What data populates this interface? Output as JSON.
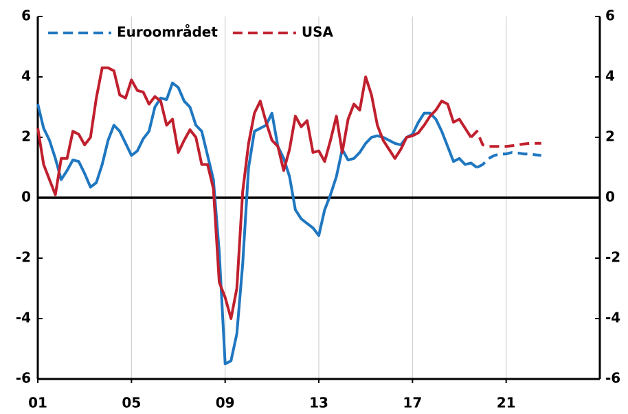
{
  "chart_data": {
    "type": "line",
    "x": [
      2001,
      2001.25,
      2001.5,
      2001.75,
      2002,
      2002.25,
      2002.5,
      2002.75,
      2003,
      2003.25,
      2003.5,
      2003.75,
      2004,
      2004.25,
      2004.5,
      2004.75,
      2005,
      2005.25,
      2005.5,
      2005.75,
      2006,
      2006.25,
      2006.5,
      2006.75,
      2007,
      2007.25,
      2007.5,
      2007.75,
      2008,
      2008.25,
      2008.5,
      2008.75,
      2009,
      2009.25,
      2009.5,
      2009.75,
      2010,
      2010.25,
      2010.5,
      2010.75,
      2011,
      2011.25,
      2011.5,
      2011.75,
      2012,
      2012.25,
      2012.5,
      2012.75,
      2013,
      2013.25,
      2013.5,
      2013.75,
      2014,
      2014.25,
      2014.5,
      2014.75,
      2015,
      2015.25,
      2015.5,
      2015.75,
      2016,
      2016.25,
      2016.5,
      2016.75,
      2017,
      2017.25,
      2017.5,
      2017.75,
      2018,
      2018.25,
      2018.5,
      2018.75,
      2019,
      2019.25,
      2019.5,
      2019.75,
      2020,
      2020.25,
      2020.5,
      2020.75,
      2021,
      2021.25,
      2021.5,
      2021.75,
      2022,
      2022.25,
      2022.5
    ],
    "series": [
      {
        "name": "Euroområdet",
        "color": "#1f77c0",
        "dashed_from": 2019.75,
        "values": [
          3.1,
          2.3,
          1.9,
          1.3,
          0.6,
          0.9,
          1.25,
          1.2,
          0.8,
          0.35,
          0.5,
          1.1,
          1.9,
          2.4,
          2.2,
          1.8,
          1.4,
          1.55,
          1.95,
          2.2,
          3.0,
          3.3,
          3.25,
          3.8,
          3.65,
          3.2,
          3.0,
          2.4,
          2.2,
          1.4,
          0.6,
          -1.8,
          -5.5,
          -5.4,
          -4.5,
          -2.2,
          1.0,
          2.2,
          2.3,
          2.4,
          2.8,
          1.7,
          1.3,
          0.7,
          -0.4,
          -0.7,
          -0.85,
          -1.0,
          -1.25,
          -0.4,
          0.1,
          0.7,
          1.6,
          1.25,
          1.3,
          1.5,
          1.8,
          2.0,
          2.05,
          2.0,
          1.9,
          1.8,
          1.75,
          2.0,
          2.1,
          2.5,
          2.8,
          2.8,
          2.6,
          2.2,
          1.7,
          1.2,
          1.3,
          1.1,
          1.15,
          1.0,
          1.1,
          1.3,
          1.4,
          1.45,
          1.45,
          1.5,
          1.48,
          1.45,
          1.45,
          1.42,
          1.4
        ]
      },
      {
        "name": "USA",
        "color": "#c0202e",
        "dashed_from": 2019.5,
        "values": [
          2.3,
          1.1,
          0.6,
          0.1,
          1.3,
          1.3,
          2.2,
          2.1,
          1.75,
          2.0,
          3.3,
          4.3,
          4.3,
          4.2,
          3.4,
          3.3,
          3.9,
          3.55,
          3.5,
          3.1,
          3.35,
          3.2,
          2.4,
          2.6,
          1.5,
          1.9,
          2.25,
          2.0,
          1.1,
          1.1,
          0.3,
          -2.8,
          -3.3,
          -4.0,
          -3.0,
          0.2,
          1.8,
          2.8,
          3.2,
          2.5,
          1.9,
          1.7,
          0.9,
          1.6,
          2.7,
          2.35,
          2.55,
          1.5,
          1.55,
          1.2,
          1.9,
          2.7,
          1.5,
          2.6,
          3.1,
          2.9,
          4.0,
          3.4,
          2.4,
          1.9,
          1.6,
          1.3,
          1.6,
          2.0,
          2.05,
          2.15,
          2.4,
          2.7,
          2.9,
          3.2,
          3.1,
          2.5,
          2.6,
          2.3,
          2.0,
          2.2,
          1.75,
          1.7,
          1.7,
          1.7,
          1.7,
          1.72,
          1.75,
          1.78,
          1.8,
          1.8,
          1.8
        ]
      }
    ],
    "xlim": [
      2001,
      2025
    ],
    "xticks": [
      {
        "value": 2001,
        "label": "01"
      },
      {
        "value": 2005,
        "label": "05"
      },
      {
        "value": 2009,
        "label": "09"
      },
      {
        "value": 2013,
        "label": "13"
      },
      {
        "value": 2017,
        "label": "17"
      },
      {
        "value": 2021,
        "label": "21"
      }
    ],
    "ylim": [
      -6,
      6
    ],
    "yticks": [
      -6,
      -4,
      -2,
      0,
      2,
      4,
      6
    ],
    "y2lim": [
      -6,
      6
    ],
    "y2ticks": [
      -6,
      -4,
      -2,
      0,
      2,
      4,
      6
    ],
    "grid": true,
    "legend": "top-left"
  }
}
